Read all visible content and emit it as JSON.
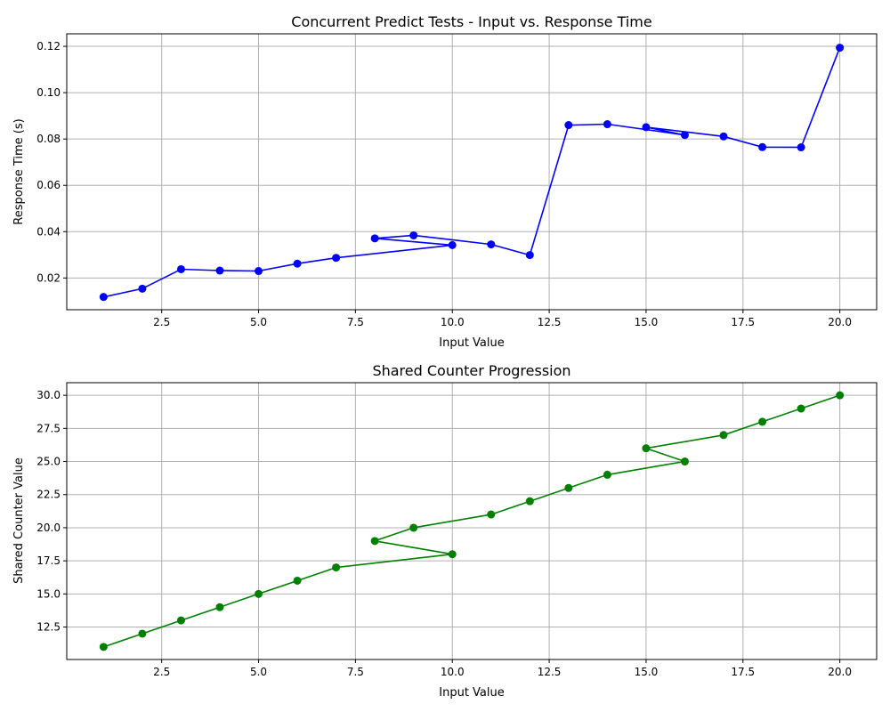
{
  "chart_data": [
    {
      "type": "line",
      "title": "Concurrent Predict Tests - Input vs. Response Time",
      "xlabel": "Input Value",
      "ylabel": "Response Time (s)",
      "xlim": [
        0.05,
        20.95
      ],
      "ylim": [
        0.0063,
        0.1254
      ],
      "xticks": [
        2.5,
        5.0,
        7.5,
        10.0,
        12.5,
        15.0,
        17.5,
        20.0
      ],
      "xtick_labels": [
        "2.5",
        "5.0",
        "7.5",
        "10.0",
        "12.5",
        "15.0",
        "17.5",
        "20.0"
      ],
      "yticks": [
        0.02,
        0.04,
        0.06,
        0.08,
        0.1,
        0.12
      ],
      "ytick_labels": [
        "0.02",
        "0.04",
        "0.06",
        "0.08",
        "0.10",
        "0.12"
      ],
      "grid": true,
      "color": "#0000ff",
      "marker": "circle",
      "series": [
        {
          "x": [
            1,
            2,
            3,
            4,
            5,
            6,
            7,
            10,
            8,
            9,
            11,
            12,
            13,
            14,
            16,
            15,
            17,
            18,
            19,
            20
          ],
          "y": [
            0.0118,
            0.0154,
            0.0238,
            0.0232,
            0.023,
            0.0262,
            0.0287,
            0.0342,
            0.0371,
            0.0384,
            0.0345,
            0.0299,
            0.086,
            0.0864,
            0.0817,
            0.0851,
            0.0811,
            0.0765,
            0.0764,
            0.1194
          ]
        }
      ]
    },
    {
      "type": "line",
      "title": "Shared Counter Progression",
      "xlabel": "Input Value",
      "ylabel": "Shared Counter Value",
      "xlim": [
        0.05,
        20.95
      ],
      "ylim": [
        10.05,
        30.95
      ],
      "xticks": [
        2.5,
        5.0,
        7.5,
        10.0,
        12.5,
        15.0,
        17.5,
        20.0
      ],
      "xtick_labels": [
        "2.5",
        "5.0",
        "7.5",
        "10.0",
        "12.5",
        "15.0",
        "17.5",
        "20.0"
      ],
      "yticks": [
        12.5,
        15.0,
        17.5,
        20.0,
        22.5,
        25.0,
        27.5,
        30.0
      ],
      "ytick_labels": [
        "12.5",
        "15.0",
        "17.5",
        "20.0",
        "22.5",
        "25.0",
        "27.5",
        "30.0"
      ],
      "grid": true,
      "color": "#008000",
      "marker": "circle",
      "series": [
        {
          "x": [
            1,
            2,
            3,
            4,
            5,
            6,
            7,
            10,
            8,
            9,
            11,
            12,
            13,
            14,
            16,
            15,
            17,
            18,
            19,
            20
          ],
          "y": [
            11,
            12,
            13,
            14,
            15,
            16,
            17,
            18,
            19,
            20,
            21,
            22,
            23,
            24,
            25,
            26,
            27,
            28,
            29,
            30
          ]
        }
      ]
    }
  ]
}
